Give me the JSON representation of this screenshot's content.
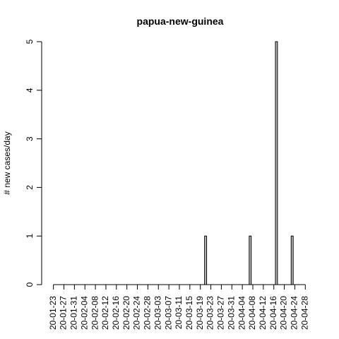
{
  "chart_data": {
    "type": "bar",
    "title": "papua-new-guinea",
    "xlabel": "",
    "ylabel": "# new cases/day",
    "ylim": [
      0,
      5
    ],
    "y_ticks": [
      "0",
      "1",
      "2",
      "3",
      "4",
      "5"
    ],
    "x_tick_labels": [
      "20-01-23",
      "20-01-27",
      "20-01-31",
      "20-02-04",
      "20-02-08",
      "20-02-12",
      "20-02-16",
      "20-02-20",
      "20-02-24",
      "20-02-28",
      "20-03-03",
      "20-03-07",
      "20-03-11",
      "20-03-15",
      "20-03-19",
      "20-03-23",
      "20-03-27",
      "20-03-31",
      "20-04-04",
      "20-04-08",
      "20-04-12",
      "20-04-16",
      "20-04-20",
      "20-04-24",
      "20-04-28"
    ],
    "categories": [
      "20-01-23",
      "20-01-24",
      "20-01-25",
      "20-01-26",
      "20-01-27",
      "20-01-28",
      "20-01-29",
      "20-01-30",
      "20-01-31",
      "20-02-01",
      "20-02-02",
      "20-02-03",
      "20-02-04",
      "20-02-05",
      "20-02-06",
      "20-02-07",
      "20-02-08",
      "20-02-09",
      "20-02-10",
      "20-02-11",
      "20-02-12",
      "20-02-13",
      "20-02-14",
      "20-02-15",
      "20-02-16",
      "20-02-17",
      "20-02-18",
      "20-02-19",
      "20-02-20",
      "20-02-21",
      "20-02-22",
      "20-02-23",
      "20-02-24",
      "20-02-25",
      "20-02-26",
      "20-02-27",
      "20-02-28",
      "20-02-29",
      "20-03-01",
      "20-03-02",
      "20-03-03",
      "20-03-04",
      "20-03-05",
      "20-03-06",
      "20-03-07",
      "20-03-08",
      "20-03-09",
      "20-03-10",
      "20-03-11",
      "20-03-12",
      "20-03-13",
      "20-03-14",
      "20-03-15",
      "20-03-16",
      "20-03-17",
      "20-03-18",
      "20-03-19",
      "20-03-20",
      "20-03-21",
      "20-03-22",
      "20-03-23",
      "20-03-24",
      "20-03-25",
      "20-03-26",
      "20-03-27",
      "20-03-28",
      "20-03-29",
      "20-03-30",
      "20-03-31",
      "20-04-01",
      "20-04-02",
      "20-04-03",
      "20-04-04",
      "20-04-05",
      "20-04-06",
      "20-04-07",
      "20-04-08",
      "20-04-09",
      "20-04-10",
      "20-04-11",
      "20-04-12",
      "20-04-13",
      "20-04-14",
      "20-04-15",
      "20-04-16",
      "20-04-17",
      "20-04-18",
      "20-04-19",
      "20-04-20",
      "20-04-21",
      "20-04-22",
      "20-04-23",
      "20-04-24",
      "20-04-25",
      "20-04-26",
      "20-04-27",
      "20-04-28",
      "20-04-29"
    ],
    "values": [
      0,
      0,
      0,
      0,
      0,
      0,
      0,
      0,
      0,
      0,
      0,
      0,
      0,
      0,
      0,
      0,
      0,
      0,
      0,
      0,
      0,
      0,
      0,
      0,
      0,
      0,
      0,
      0,
      0,
      0,
      0,
      0,
      0,
      0,
      0,
      0,
      0,
      0,
      0,
      0,
      0,
      0,
      0,
      0,
      0,
      0,
      0,
      0,
      0,
      0,
      0,
      0,
      0,
      0,
      0,
      0,
      0,
      0,
      1,
      0,
      0,
      0,
      0,
      0,
      0,
      0,
      0,
      0,
      0,
      0,
      0,
      0,
      0,
      0,
      0,
      1,
      0,
      0,
      0,
      0,
      0,
      0,
      0,
      0,
      0,
      5,
      0,
      0,
      0,
      0,
      0,
      1,
      0,
      0,
      0,
      0,
      0,
      0
    ],
    "bar_fill": "#bebebe",
    "bar_stroke": "#000000",
    "grid": false,
    "legend": "none"
  }
}
